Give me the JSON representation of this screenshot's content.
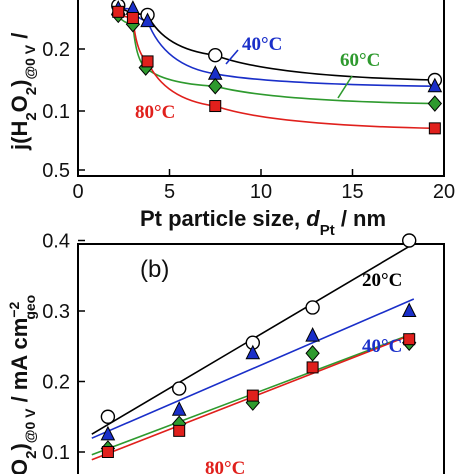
{
  "chart_data": [
    {
      "panel": "a",
      "type": "scatter",
      "x_label_parts": [
        "Pt particle size, ",
        "d",
        "Pt",
        " / nm"
      ],
      "y_label_parts": [
        "j(H",
        "2",
        "O",
        "2",
        ")",
        "@0 V",
        " /"
      ],
      "x_ticks": [
        "0",
        "5",
        "10",
        "15",
        "20"
      ],
      "y_ticks": [
        "0.1",
        "0.2"
      ],
      "xlim": [
        0,
        20
      ],
      "ylim": [
        0.02,
        0.29
      ],
      "series": [
        {
          "name": "20°C",
          "marker": "circle",
          "color": "#000000",
          "x": [
            2.2,
            3.8,
            7.5,
            19.5
          ],
          "y": [
            0.27,
            0.255,
            0.19,
            0.15
          ]
        },
        {
          "name": "40°C",
          "marker": "triangle",
          "color": "#1a2fc9",
          "x": [
            2.2,
            3.0,
            3.8,
            7.5,
            19.5
          ],
          "y": [
            0.265,
            0.265,
            0.245,
            0.16,
            0.14
          ]
        },
        {
          "name": "60°C",
          "marker": "diamond",
          "color": "#2e9a2e",
          "x": [
            2.2,
            3.0,
            3.7,
            7.5,
            19.5
          ],
          "y": [
            0.255,
            0.24,
            0.17,
            0.14,
            0.112
          ]
        },
        {
          "name": "80°C",
          "marker": "square",
          "color": "#e0201c",
          "x": [
            2.2,
            3.0,
            3.8,
            7.5,
            19.5
          ],
          "y": [
            0.26,
            0.25,
            0.18,
            0.108,
            0.072
          ]
        }
      ],
      "annotations": [
        {
          "text": "40°C",
          "color": "#1a2fc9"
        },
        {
          "text": "60°C",
          "color": "#2e9a2e"
        },
        {
          "text": "80°C",
          "color": "#e0201c"
        }
      ]
    },
    {
      "panel": "b",
      "type": "scatter",
      "panel_label": "(b)",
      "y_label_parts": [
        "O",
        "2",
        ")",
        "@0 V",
        " / mA cm",
        "−2",
        "geo"
      ],
      "y_ticks": [
        "0.1",
        "0.2",
        "0.3",
        "0.4",
        "0.5"
      ],
      "ylim": [
        0.08,
        0.5
      ],
      "series": [
        {
          "name": "20°C",
          "marker": "circle",
          "color": "#000000",
          "x": [
            0.65,
            2.2,
            3.8,
            5.1,
            7.2
          ],
          "y": [
            0.15,
            0.19,
            0.255,
            0.305,
            0.4
          ]
        },
        {
          "name": "40°C",
          "marker": "triangle",
          "color": "#1a2fc9",
          "x": [
            0.65,
            2.2,
            3.8,
            5.1,
            7.2
          ],
          "y": [
            0.125,
            0.16,
            0.24,
            0.265,
            0.3
          ]
        },
        {
          "name": "60°C",
          "marker": "diamond",
          "color": "#2e9a2e",
          "x": [
            0.65,
            2.2,
            3.8,
            5.1,
            7.2
          ],
          "y": [
            0.105,
            0.14,
            0.17,
            0.24,
            0.255
          ]
        },
        {
          "name": "80°C",
          "marker": "square",
          "color": "#e0201c",
          "x": [
            0.65,
            2.2,
            3.8,
            5.1,
            7.2
          ],
          "y": [
            0.1,
            0.13,
            0.18,
            0.22,
            0.26
          ]
        }
      ],
      "annotations": [
        {
          "text": "20°C",
          "color": "#000000"
        },
        {
          "text": "40°C",
          "color": "#1a2fc9"
        },
        {
          "text": "80°C",
          "color": "#e0201c"
        }
      ]
    }
  ]
}
